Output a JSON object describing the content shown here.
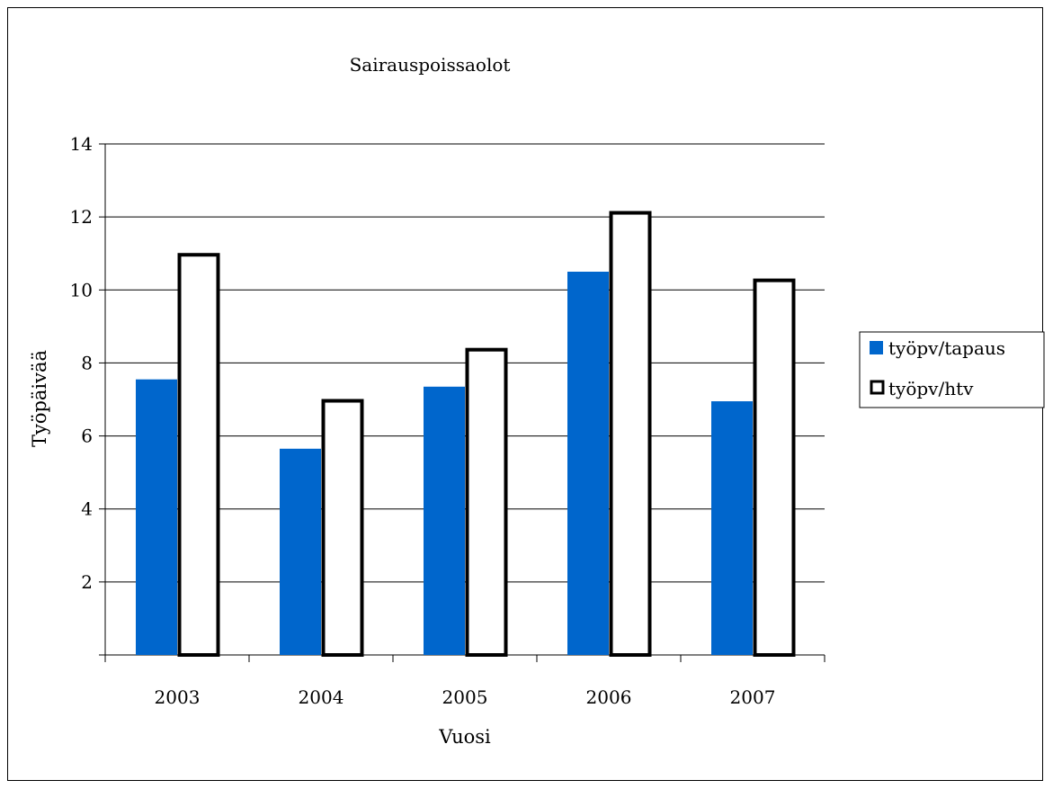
{
  "chart_data": {
    "type": "bar",
    "title": "Sairauspoissaolot",
    "xlabel": "Vuosi",
    "ylabel": "Työpäivää",
    "categories": [
      "2003",
      "2004",
      "2005",
      "2006",
      "2007"
    ],
    "series": [
      {
        "name": "työpv/tapaus",
        "values": [
          7.55,
          5.65,
          7.35,
          10.5,
          6.95
        ],
        "color": "#0066cc",
        "style": "filled"
      },
      {
        "name": "työpv/htv",
        "values": [
          11.0,
          7.0,
          8.4,
          12.15,
          10.3
        ],
        "color": "#ffffff",
        "style": "outlined"
      }
    ],
    "ylim": [
      0,
      14
    ],
    "yticks": [
      "",
      "2",
      "4",
      "6",
      "8",
      "10",
      "12",
      "14"
    ],
    "grid": true,
    "legend": "right"
  }
}
